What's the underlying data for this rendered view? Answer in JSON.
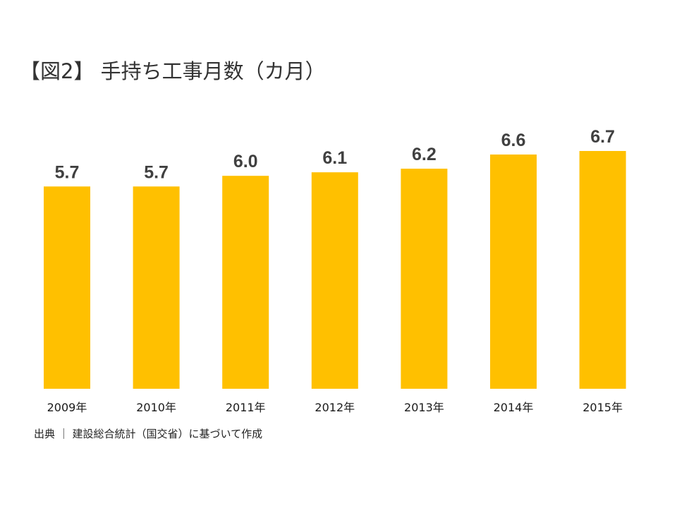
{
  "title": "【図2】 手持ち工事月数（カ月）",
  "source": "出典 ｜ 建設総合統計（国交省）に基づいて作成",
  "colors": {
    "bar": "#FFC000",
    "value_label": "#404040",
    "tick_label": "#1a1a1a"
  },
  "chart_data": {
    "type": "bar",
    "title": "【図2】 手持ち工事月数（カ月）",
    "xlabel": "",
    "ylabel": "",
    "categories": [
      "2009年",
      "2010年",
      "2011年",
      "2012年",
      "2013年",
      "2014年",
      "2015年"
    ],
    "values": [
      5.7,
      5.7,
      6.0,
      6.1,
      6.2,
      6.6,
      6.7
    ],
    "ylim": [
      0,
      6.7
    ],
    "grid": false,
    "legend": "none",
    "data_labels": true
  }
}
